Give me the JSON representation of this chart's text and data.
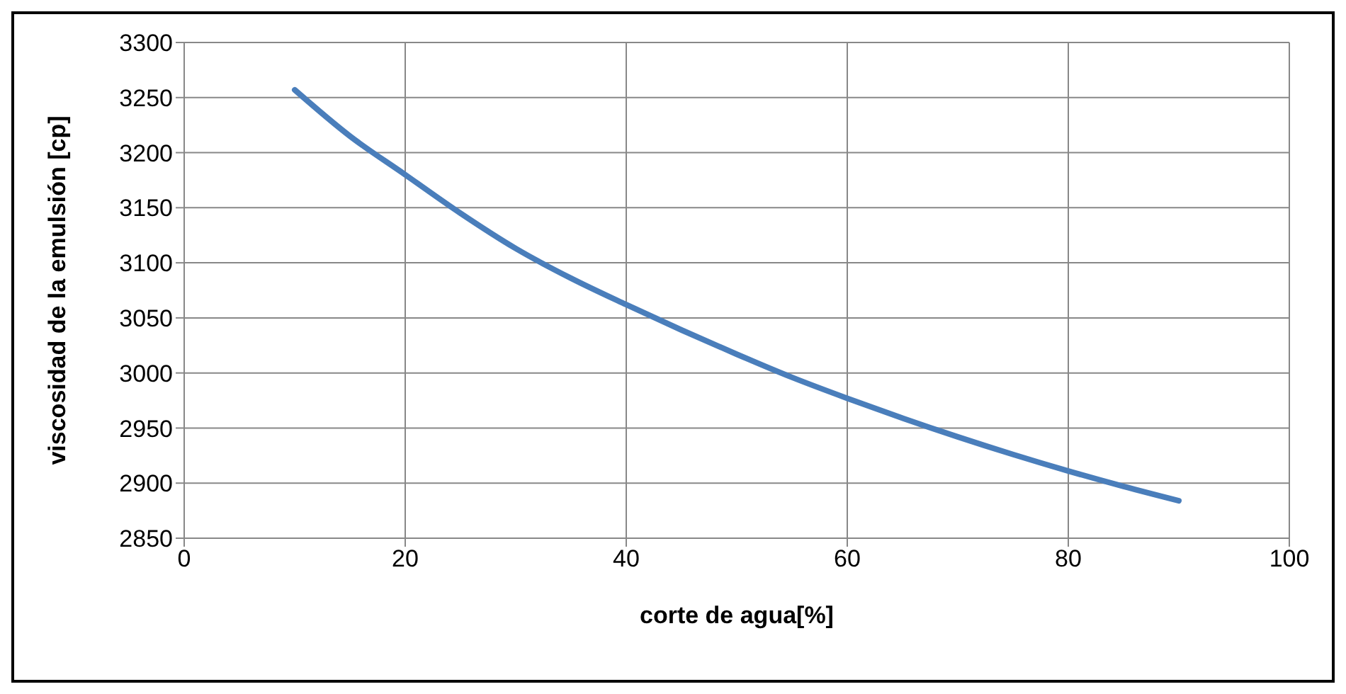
{
  "chart_data": {
    "type": "line",
    "xlabel": "corte de agua[%]",
    "ylabel": "viscosidad de la emulsión [cp]",
    "x": [
      10,
      15,
      20,
      25,
      30,
      35,
      40,
      45,
      50,
      55,
      60,
      65,
      70,
      75,
      80,
      85,
      90
    ],
    "series": [
      {
        "color": "#4a7ebb",
        "values": [
          3257,
          3215,
          3180,
          3145,
          3113,
          3086,
          3062,
          3039,
          3017,
          2996,
          2977,
          2959,
          2942,
          2926,
          2911,
          2897,
          2884
        ]
      }
    ],
    "xlim": [
      0,
      100
    ],
    "xticks": [
      0,
      20,
      40,
      60,
      80,
      100
    ],
    "ylim": [
      2850,
      3300
    ],
    "yticks": [
      2850,
      2900,
      2950,
      3000,
      3050,
      3100,
      3150,
      3200,
      3250,
      3300
    ],
    "grid": true,
    "legend": false,
    "marker": "none",
    "line_style": "solid"
  }
}
